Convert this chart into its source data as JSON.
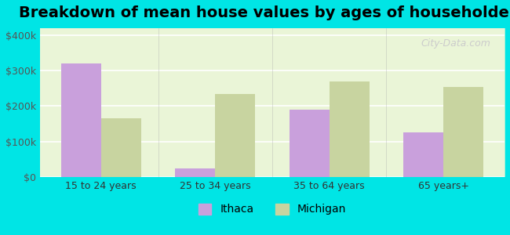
{
  "title": "Breakdown of mean house values by ages of householders",
  "categories": [
    "15 to 24 years",
    "25 to 34 years",
    "35 to 64 years",
    "65 years+"
  ],
  "ithaca_values": [
    320000,
    25000,
    190000,
    125000
  ],
  "michigan_values": [
    165000,
    235000,
    270000,
    255000
  ],
  "ithaca_color": "#c9a0dc",
  "michigan_color": "#c8d4a0",
  "background_color": "#00e5e5",
  "plot_bg_start": "#f0f8e8",
  "plot_bg_end": "#ffffff",
  "ylim": [
    0,
    420000
  ],
  "yticks": [
    0,
    100000,
    200000,
    300000,
    400000
  ],
  "ytick_labels": [
    "$0",
    "$100k",
    "$200k",
    "$300k",
    "$400k"
  ],
  "bar_width": 0.35,
  "title_fontsize": 14,
  "legend_labels": [
    "Ithaca",
    "Michigan"
  ],
  "watermark": "City-Data.com"
}
